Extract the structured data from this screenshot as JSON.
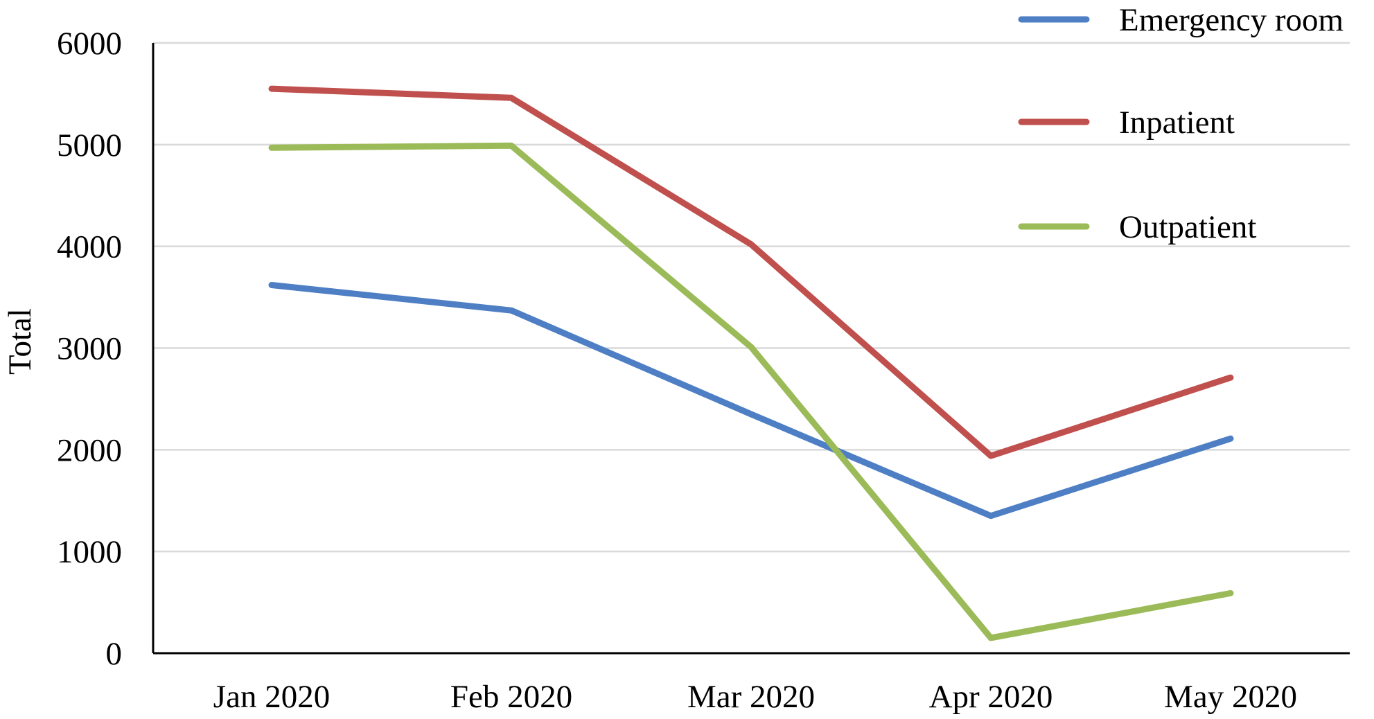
{
  "chart_data": {
    "type": "line",
    "title": "",
    "xlabel": "",
    "ylabel": "Total",
    "categories": [
      "Jan 2020",
      "Feb 2020",
      "Mar 2020",
      "Apr 2020",
      "May 2020"
    ],
    "ylim": [
      0,
      6000
    ],
    "yticks": [
      "0",
      "1000",
      "2000",
      "3000",
      "4000",
      "5000",
      "6000"
    ],
    "grid": true,
    "legend_position": "top-right",
    "series": [
      {
        "name": "Emergency room",
        "color": "#4E7FC4",
        "values": [
          3620,
          3370,
          2350,
          1350,
          2110
        ]
      },
      {
        "name": "Inpatient",
        "color": "#C0504D",
        "values": [
          5550,
          5460,
          4020,
          1940,
          2710
        ]
      },
      {
        "name": "Outpatient",
        "color": "#9BBB59",
        "values": [
          4970,
          4990,
          3010,
          150,
          590
        ]
      }
    ]
  }
}
